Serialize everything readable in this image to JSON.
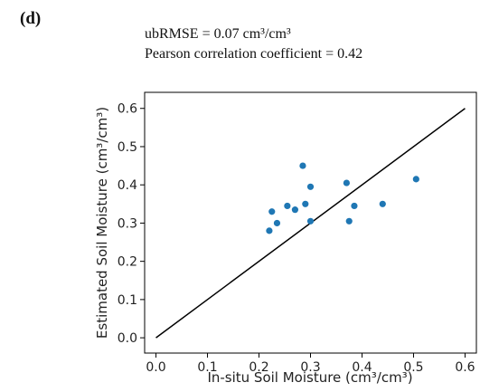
{
  "panel_label": "(d)",
  "chart_data": {
    "type": "scatter",
    "annotations": [
      "ubRMSE = 0.07 cm³/cm³",
      "Pearson correlation coefficient = 0.42"
    ],
    "xlabel": "In-situ Soil Moisture (cm³/cm³)",
    "ylabel": "Estimated Soil Moisture (cm³/cm³)",
    "series": [
      {
        "color": "#1f77b4",
        "x": [
          0.22,
          0.225,
          0.235,
          0.255,
          0.27,
          0.285,
          0.29,
          0.3,
          0.3,
          0.37,
          0.375,
          0.385,
          0.44,
          0.505
        ],
        "values": [
          0.28,
          0.33,
          0.3,
          0.345,
          0.335,
          0.45,
          0.35,
          0.305,
          0.395,
          0.405,
          0.305,
          0.345,
          0.35,
          0.415
        ]
      }
    ],
    "reference_line": {
      "color": "#000000",
      "x": [
        0,
        0.6
      ],
      "values": [
        0,
        0.6
      ]
    },
    "xlim": [
      -0.022,
      0.622
    ],
    "ylim": [
      -0.04,
      0.642
    ],
    "xticks": [
      {
        "value": 0,
        "label": "0.0"
      },
      0.1,
      0.2,
      0.3,
      0.4,
      0.5,
      0.6
    ],
    "yticks": [
      {
        "value": 0,
        "label": "0.0"
      },
      0.1,
      0.2,
      0.3,
      0.4,
      0.5,
      0.6
    ]
  }
}
